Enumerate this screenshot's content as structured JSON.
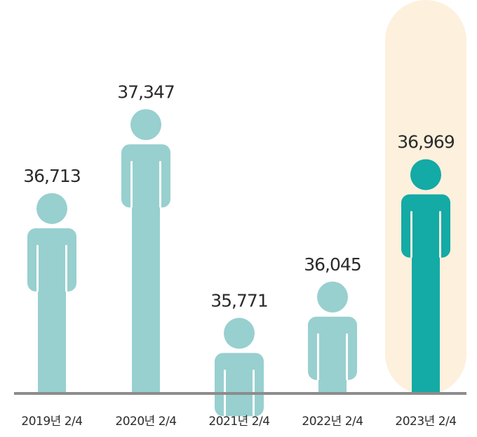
{
  "chart_data": {
    "type": "bar",
    "title": "",
    "xlabel": "",
    "ylabel": "",
    "categories": [
      "2019년 2/4",
      "2020년 2/4",
      "2021년 2/4",
      "2022년 2/4",
      "2023년 2/4"
    ],
    "values": [
      36713,
      37347,
      35771,
      36045,
      36969
    ],
    "value_labels": [
      "36,713",
      "37,347",
      "35,771",
      "36,045",
      "36,969"
    ],
    "ylim": [
      35200,
      37800
    ],
    "grid": false,
    "legend": "none",
    "highlight_index": 4,
    "colors": {
      "bar": "#98cfcf",
      "highlight_bar": "#14aaa5",
      "highlight_background": "#fdf0dd",
      "baseline": "#8c8c8c",
      "text": "#2b2b2b"
    },
    "mark_icon": "person-icon"
  }
}
